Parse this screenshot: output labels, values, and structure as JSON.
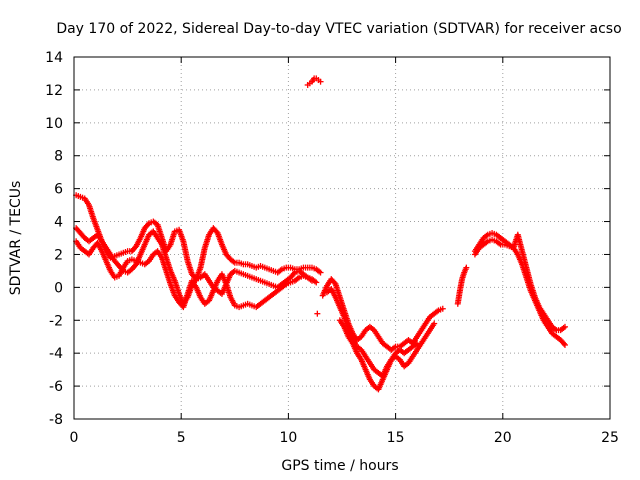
{
  "chart_data": {
    "type": "scatter",
    "title": "Day 170 of 2022, Sidereal Day-to-day VTEC variation (SDTVAR) for receiver acso",
    "xlabel": "GPS time / hours",
    "ylabel": "SDTVAR / TECUs",
    "xlim": [
      0,
      25
    ],
    "ylim": [
      -8,
      14
    ],
    "xticks": [
      0,
      5,
      10,
      15,
      20,
      25
    ],
    "yticks": [
      -8,
      -6,
      -4,
      -2,
      0,
      2,
      4,
      6,
      8,
      10,
      12,
      14
    ],
    "grid": true,
    "marker": "+",
    "color": "#ff0000",
    "series": [
      {
        "name": "trace-upper",
        "x": [
          0.1,
          0.3,
          0.5,
          0.7,
          0.9,
          1.1,
          1.3,
          1.5,
          1.7,
          1.9,
          2.1,
          2.3,
          2.5,
          2.7,
          2.9,
          3.1,
          3.3,
          3.5,
          3.7,
          3.9,
          4.1,
          4.3,
          4.5,
          4.7,
          4.9,
          5.1,
          5.3,
          5.5,
          5.7,
          5.9,
          6.1,
          6.3,
          6.5,
          6.7,
          6.9,
          7.1,
          7.3,
          7.5,
          7.7,
          7.9,
          8.1,
          8.3,
          8.5,
          8.7,
          8.9,
          9.1,
          9.3,
          9.5,
          9.7,
          9.9,
          10.1,
          10.3,
          10.5,
          10.7,
          10.9,
          11.1,
          11.3,
          11.5
        ],
        "y": [
          5.6,
          5.5,
          5.4,
          5.0,
          4.2,
          3.5,
          2.8,
          2.2,
          1.8,
          1.9,
          2.0,
          2.1,
          2.2,
          2.2,
          2.5,
          3.0,
          3.6,
          3.9,
          4.0,
          3.8,
          3.0,
          2.2,
          2.6,
          3.4,
          3.5,
          2.8,
          1.6,
          0.8,
          0.5,
          1.2,
          2.4,
          3.2,
          3.6,
          3.3,
          2.6,
          2.0,
          1.7,
          1.5,
          1.5,
          1.4,
          1.4,
          1.3,
          1.2,
          1.3,
          1.2,
          1.1,
          1.0,
          0.9,
          1.1,
          1.2,
          1.2,
          1.1,
          1.1,
          1.2,
          1.2,
          1.2,
          1.1,
          0.9
        ]
      },
      {
        "name": "trace-middle",
        "x": [
          0.1,
          0.3,
          0.5,
          0.7,
          0.9,
          1.1,
          1.3,
          1.5,
          1.7,
          1.9,
          2.1,
          2.3,
          2.5,
          2.7,
          2.9,
          3.1,
          3.3,
          3.5,
          3.7,
          3.9,
          4.1,
          4.3,
          4.5,
          4.7,
          4.9,
          5.1,
          5.3,
          5.5,
          5.7,
          5.9,
          6.1,
          6.3,
          6.5,
          6.7,
          6.9,
          7.1,
          7.3,
          7.5,
          7.7,
          7.9,
          8.1,
          8.3,
          8.5,
          8.7,
          8.9,
          9.1,
          9.3,
          9.5,
          9.7,
          9.9,
          10.1,
          10.3,
          10.5,
          10.7,
          10.9,
          11.1,
          11.3
        ],
        "y": [
          3.6,
          3.3,
          3.0,
          2.8,
          3.0,
          3.2,
          2.8,
          2.4,
          2.0,
          1.6,
          1.3,
          1.0,
          0.9,
          1.1,
          1.4,
          2.0,
          2.6,
          3.2,
          3.4,
          3.0,
          2.6,
          1.8,
          1.0,
          0.4,
          -0.4,
          -1.0,
          -0.6,
          0.1,
          0.5,
          0.6,
          0.8,
          0.4,
          0.0,
          -0.2,
          -0.4,
          0.2,
          0.8,
          1.0,
          0.9,
          0.8,
          0.7,
          0.6,
          0.5,
          0.4,
          0.3,
          0.2,
          0.1,
          0.0,
          0.2,
          0.4,
          0.6,
          0.9,
          1.0,
          0.8,
          0.6,
          0.5,
          0.3
        ]
      },
      {
        "name": "trace-lower",
        "x": [
          0.1,
          0.3,
          0.5,
          0.7,
          0.9,
          1.1,
          1.3,
          1.5,
          1.7,
          1.9,
          2.1,
          2.3,
          2.5,
          2.7,
          2.9,
          3.1,
          3.3,
          3.5,
          3.7,
          3.9,
          4.1,
          4.3,
          4.5,
          4.7,
          4.9,
          5.1,
          5.3,
          5.5,
          5.7,
          5.9,
          6.1,
          6.3,
          6.5,
          6.7,
          6.9,
          7.1,
          7.3,
          7.5,
          7.7,
          7.9,
          8.1,
          8.3,
          8.5,
          8.7,
          8.9,
          9.1,
          9.3,
          9.5,
          9.7,
          9.9,
          10.1,
          10.3,
          10.5,
          10.7,
          10.9,
          11.1
        ],
        "y": [
          2.8,
          2.4,
          2.2,
          2.0,
          2.4,
          2.7,
          2.2,
          1.6,
          1.0,
          0.6,
          0.7,
          1.2,
          1.6,
          1.7,
          1.6,
          1.5,
          1.4,
          1.6,
          2.0,
          2.2,
          1.8,
          1.0,
          0.2,
          -0.5,
          -0.9,
          -1.2,
          -0.4,
          0.4,
          0.0,
          -0.6,
          -1.0,
          -0.8,
          -0.2,
          0.4,
          0.8,
          0.2,
          -0.6,
          -1.1,
          -1.2,
          -1.1,
          -1.0,
          -1.1,
          -1.2,
          -1.0,
          -0.8,
          -0.6,
          -0.4,
          -0.2,
          0.0,
          0.2,
          0.3,
          0.4,
          0.6,
          0.7,
          0.6,
          0.4
        ]
      },
      {
        "name": "trace-outlier-high",
        "x": [
          10.9,
          11.0,
          11.1,
          11.2,
          11.3,
          11.4,
          11.5
        ],
        "y": [
          12.3,
          12.4,
          12.5,
          12.7,
          12.7,
          12.6,
          12.5
        ]
      },
      {
        "name": "trace-outlier-low",
        "x": [
          11.35
        ],
        "y": [
          -1.6
        ]
      },
      {
        "name": "trace-dip-a",
        "x": [
          11.6,
          11.8,
          12.0,
          12.2,
          12.4,
          12.6,
          12.8,
          13.0,
          13.2,
          13.4,
          13.6,
          13.8,
          14.0,
          14.2,
          14.4,
          14.6,
          14.8,
          15.0,
          15.2,
          15.4,
          15.6,
          15.8,
          16.0,
          16.2,
          16.4,
          16.6,
          16.8,
          17.0,
          17.2
        ],
        "y": [
          -0.5,
          0.1,
          0.5,
          0.2,
          -0.6,
          -1.4,
          -2.2,
          -2.8,
          -3.2,
          -3.0,
          -2.6,
          -2.4,
          -2.6,
          -3.0,
          -3.4,
          -3.6,
          -3.8,
          -3.6,
          -3.6,
          -3.4,
          -3.2,
          -3.4,
          -3.0,
          -2.6,
          -2.2,
          -1.8,
          -1.6,
          -1.4,
          -1.3
        ]
      },
      {
        "name": "trace-dip-b",
        "x": [
          11.8,
          12.0,
          12.2,
          12.4,
          12.6,
          12.8,
          13.0,
          13.2,
          13.4,
          13.6,
          13.8,
          14.0,
          14.2,
          14.4,
          14.6,
          14.8,
          15.0,
          15.2,
          15.4,
          15.6,
          15.8,
          16.0,
          16.2,
          16.4,
          16.6,
          16.8
        ],
        "y": [
          -0.3,
          -0.1,
          -0.6,
          -1.2,
          -1.8,
          -2.6,
          -3.2,
          -3.6,
          -3.8,
          -4.2,
          -4.6,
          -5.0,
          -5.2,
          -5.4,
          -4.8,
          -4.4,
          -4.2,
          -4.4,
          -4.8,
          -4.6,
          -4.2,
          -3.8,
          -3.4,
          -3.0,
          -2.6,
          -2.2
        ]
      },
      {
        "name": "trace-dip-c",
        "x": [
          12.4,
          12.6,
          12.8,
          13.0,
          13.2,
          13.4,
          13.6,
          13.8,
          14.0,
          14.2,
          14.4,
          14.6,
          14.8,
          15.0,
          15.2,
          15.4,
          15.6,
          15.8,
          16.0
        ],
        "y": [
          -2.0,
          -2.4,
          -3.0,
          -3.4,
          -4.0,
          -4.4,
          -5.0,
          -5.6,
          -6.0,
          -6.2,
          -5.6,
          -5.0,
          -4.4,
          -4.0,
          -3.8,
          -4.0,
          -3.8,
          -3.6,
          -3.4
        ]
      },
      {
        "name": "trace-rise-a",
        "x": [
          17.9,
          18.0,
          18.1,
          18.2,
          18.3
        ],
        "y": [
          -1.0,
          -0.2,
          0.5,
          0.9,
          1.2
        ]
      },
      {
        "name": "trace-rise-b",
        "x": [
          18.7,
          18.9,
          19.1,
          19.3,
          19.5,
          19.7,
          19.9,
          20.1,
          20.3,
          20.5,
          20.7,
          20.9,
          21.1,
          21.3,
          21.5,
          21.7,
          21.9,
          22.1,
          22.3,
          22.5,
          22.7,
          22.9
        ],
        "y": [
          2.2,
          2.6,
          3.0,
          3.2,
          3.3,
          3.2,
          3.0,
          2.8,
          2.6,
          2.4,
          3.2,
          2.2,
          1.2,
          0.2,
          -0.6,
          -1.2,
          -1.6,
          -2.0,
          -2.4,
          -2.6,
          -2.6,
          -2.4
        ]
      },
      {
        "name": "trace-rise-c",
        "x": [
          18.7,
          18.9,
          19.1,
          19.3,
          19.5,
          19.7,
          19.9,
          20.1,
          20.3,
          20.5,
          20.7,
          20.9,
          21.1,
          21.3,
          21.5,
          21.7,
          21.9,
          22.1,
          22.3,
          22.5,
          22.7,
          22.9
        ],
        "y": [
          2.0,
          2.4,
          2.6,
          2.8,
          2.9,
          2.8,
          2.6,
          2.6,
          2.5,
          2.4,
          2.0,
          1.4,
          0.6,
          -0.2,
          -0.8,
          -1.4,
          -2.0,
          -2.4,
          -2.8,
          -3.0,
          -3.2,
          -3.5
        ]
      }
    ]
  }
}
